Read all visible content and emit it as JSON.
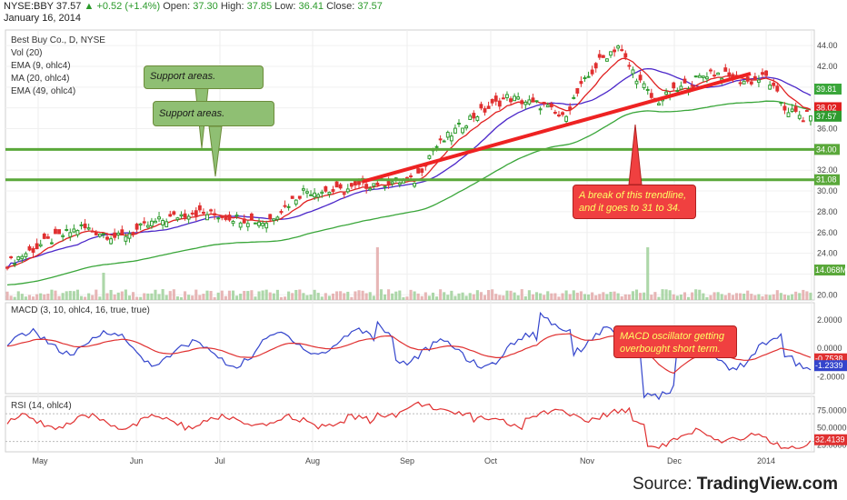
{
  "header": {
    "ticker": "NYSE:BBY",
    "price": "37.57",
    "change": "+0.52 (+1.4%)",
    "open_label": "Open:",
    "open": "37.30",
    "high_label": "High:",
    "high": "37.85",
    "low_label": "Low:",
    "low": "36.41",
    "close_label": "Close:",
    "close": "37.57",
    "date": "January 16, 2014"
  },
  "indicators": {
    "main_title": "Best Buy Co., D, NYSE",
    "vol": "Vol (20)",
    "ema9": "EMA (9, ohlc4)",
    "ma20": "MA (20, ohlc4)",
    "ema49": "EMA (49, ohlc4)",
    "macd": "MACD (3, 10, ohlc4, 16, true, true)",
    "rsi": "RSI (14, ohlc4)"
  },
  "annotations": {
    "support1": "Support areas.",
    "support2": "Support areas.",
    "trendline_break": "A break of this trendline, and it goes to 31 to 34.",
    "macd_note": "MACD oscillator getting overbought short term."
  },
  "source": {
    "prefix": "Source: ",
    "brand": "TradingView.com"
  },
  "colors": {
    "up_candle": "#2e9b2e",
    "down_candle": "#e03030",
    "ema9": "#e02020",
    "ma20": "#4b27c9",
    "ema49": "#3aa63a",
    "macd": "#3344cc",
    "signal": "#e03030",
    "rsi": "#e03030",
    "support_line": "#5aa83a",
    "trendline": "#ee2222"
  },
  "chart_data": {
    "type": "candlestick",
    "price_axis": {
      "ticks": [
        "44.00",
        "42.00",
        "38.00",
        "36.00",
        "34.00",
        "32.00",
        "31.08",
        "30.00",
        "28.00",
        "26.00",
        "24.00",
        "20.00"
      ],
      "range": [
        19.5,
        45.5
      ]
    },
    "price_labels": {
      "ema49": "39.81",
      "ema9": "38.02",
      "last": "37.57",
      "vol_last": "14.068M"
    },
    "support_levels": [
      {
        "label": "34.00",
        "value": 34.0
      },
      {
        "label": "31.08",
        "value": 31.08
      }
    ],
    "trendline": {
      "from": {
        "date": "2013-08-19",
        "price": 30.9
      },
      "to": {
        "date": "2013-12-23",
        "price": 41.3
      }
    },
    "months": [
      "May",
      "Jun",
      "Jul",
      "Aug",
      "Sep",
      "Oct",
      "Nov",
      "Dec",
      "2014"
    ],
    "close_path": [
      [
        0,
        23.0
      ],
      [
        10,
        25.0
      ],
      [
        20,
        26.5
      ],
      [
        30,
        25.5
      ],
      [
        40,
        27.0
      ],
      [
        50,
        28.0
      ],
      [
        60,
        27.5
      ],
      [
        70,
        27.0
      ],
      [
        80,
        30.0
      ],
      [
        90,
        30.0
      ],
      [
        100,
        30.8
      ],
      [
        110,
        31.0
      ],
      [
        115,
        34.0
      ],
      [
        125,
        37.0
      ],
      [
        135,
        39.0
      ],
      [
        145,
        38.2
      ],
      [
        150,
        37.0
      ],
      [
        155,
        40.0
      ],
      [
        160,
        42.5
      ],
      [
        165,
        44.0
      ],
      [
        168,
        42.0
      ],
      [
        175,
        38.5
      ],
      [
        180,
        39.5
      ],
      [
        190,
        41.5
      ],
      [
        200,
        40.5
      ],
      [
        205,
        41.0
      ],
      [
        210,
        38.0
      ],
      [
        215,
        37.0
      ],
      [
        217,
        37.57
      ]
    ],
    "macd_axis": {
      "ticks": [
        "2.0000",
        "0.0000",
        "-2.0000"
      ],
      "range": [
        -3.2,
        3.2
      ],
      "labels": {
        "signal": "-0.7538",
        "macd": "-1.2339"
      }
    },
    "rsi_axis": {
      "ticks": [
        "75.0000",
        "50.0000",
        "25.0000"
      ],
      "range": [
        15,
        95
      ],
      "labels": {
        "rsi": "32.4139"
      }
    }
  }
}
